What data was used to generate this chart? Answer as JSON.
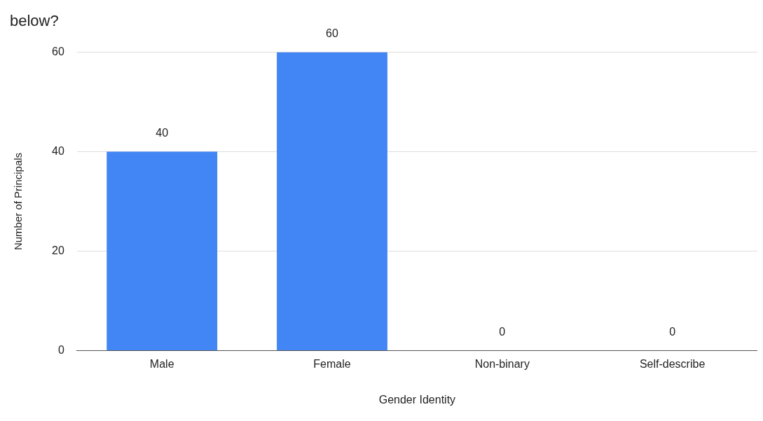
{
  "chart_data": {
    "type": "bar",
    "title": "below?",
    "xlabel": "Gender Identity",
    "ylabel": "Number of Principals",
    "categories": [
      "Male",
      "Female",
      "Non-binary",
      "Self-describe"
    ],
    "values": [
      40,
      60,
      0,
      0
    ],
    "color": "#4285f4",
    "ylim": [
      0,
      60
    ],
    "yticks": [
      0,
      20,
      40,
      60
    ],
    "grid": "y",
    "data_labels": true,
    "legend": false
  }
}
